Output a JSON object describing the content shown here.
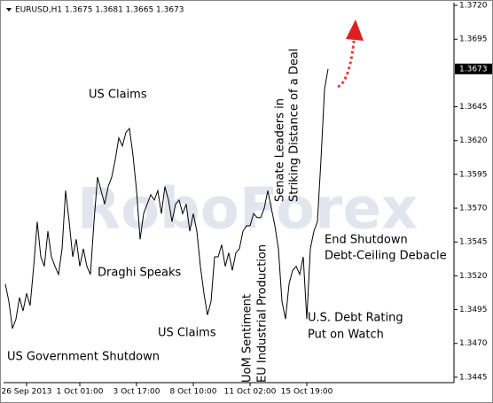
{
  "chart_data": {
    "type": "line",
    "title": "EURUSD,H1 1.3675 1.3681 1.3665 1.3673",
    "watermark": "RoboForex",
    "last_price": 1.3673,
    "color": "#000000",
    "categories": [
      null,
      null,
      null,
      null,
      null,
      null,
      "26 Sep 2013",
      null,
      null,
      null,
      null,
      null,
      null,
      null,
      null,
      null,
      null,
      null,
      null,
      null,
      null,
      "1 Oct 01:00",
      null,
      null,
      null,
      null,
      null,
      null,
      null,
      null,
      null,
      null,
      null,
      null,
      null,
      null,
      null,
      "3 Oct 17:00",
      null,
      null,
      null,
      null,
      null,
      null,
      null,
      null,
      null,
      null,
      null,
      null,
      null,
      null,
      null,
      "8 Oct 10:00",
      null,
      null,
      null,
      null,
      null,
      null,
      null,
      null,
      null,
      null,
      null,
      null,
      null,
      null,
      null,
      "11 Oct 02:00",
      null,
      null,
      null,
      null,
      null,
      null,
      null,
      null,
      null,
      null,
      null,
      null,
      null,
      null,
      null,
      "15 Oct 19:00",
      null,
      null,
      null,
      null,
      null,
      null
    ],
    "values": [
      1.3514,
      1.3501,
      1.3481,
      1.3488,
      1.3504,
      1.3494,
      1.3507,
      1.3498,
      1.3527,
      1.356,
      1.3534,
      1.3527,
      1.3553,
      1.3534,
      1.3527,
      1.3521,
      1.354,
      1.3583,
      1.356,
      1.3534,
      1.3547,
      1.3527,
      1.354,
      1.3527,
      1.3521,
      1.356,
      1.3593,
      1.3583,
      1.3573,
      1.3586,
      1.3593,
      1.3606,
      1.3622,
      1.3616,
      1.3626,
      1.3629,
      1.3609,
      1.3583,
      1.3547,
      1.3566,
      1.3573,
      1.358,
      1.3576,
      1.3583,
      1.3566,
      1.3586,
      1.3576,
      1.356,
      1.3573,
      1.3576,
      1.3566,
      1.3573,
      1.3553,
      1.3566,
      1.3553,
      1.3527,
      1.3507,
      1.3491,
      1.3501,
      1.3534,
      1.3534,
      1.3543,
      1.3527,
      1.3537,
      1.3524,
      1.3537,
      1.354,
      1.3553,
      1.3557,
      1.3557,
      1.3566,
      1.3563,
      1.3563,
      1.357,
      1.3583,
      1.357,
      1.3557,
      1.354,
      1.3501,
      1.3488,
      1.3514,
      1.3524,
      1.3527,
      1.3521,
      1.3534,
      1.3488,
      1.354,
      1.3553,
      1.356,
      1.3606,
      1.3658,
      1.3673
    ],
    "ylim": [
      1.3441,
      1.3722
    ],
    "yticks": [
      1.3445,
      {
        "value": 1.347,
        "label": "1.3470"
      },
      1.3495,
      {
        "value": 1.352,
        "label": "1.3520"
      },
      1.3545,
      {
        "value": 1.357,
        "label": "1.3570"
      },
      1.3595,
      {
        "value": 1.362,
        "label": "1.3620"
      },
      1.3645,
      1.3695,
      {
        "value": 1.372,
        "label": "1.3720"
      }
    ],
    "annotations": [
      {
        "text": [
          "US Claims"
        ]
      },
      {
        "text": [
          "Draghi Speaks"
        ]
      },
      {
        "text": [
          "US Claims"
        ]
      },
      {
        "text": [
          "US Government Shutdown"
        ]
      },
      {
        "text": [
          "UoM Sentiment",
          "EU Industrial Production"
        ]
      },
      {
        "text": [
          "Senate Leaders in",
          "Striking Distance of a Deal"
        ]
      },
      {
        "text": [
          "End Shutdown",
          "Debt-Ceiling Debacle"
        ]
      },
      {
        "text": [
          "U.S. Debt Rating",
          "Put on Watch"
        ]
      }
    ]
  }
}
